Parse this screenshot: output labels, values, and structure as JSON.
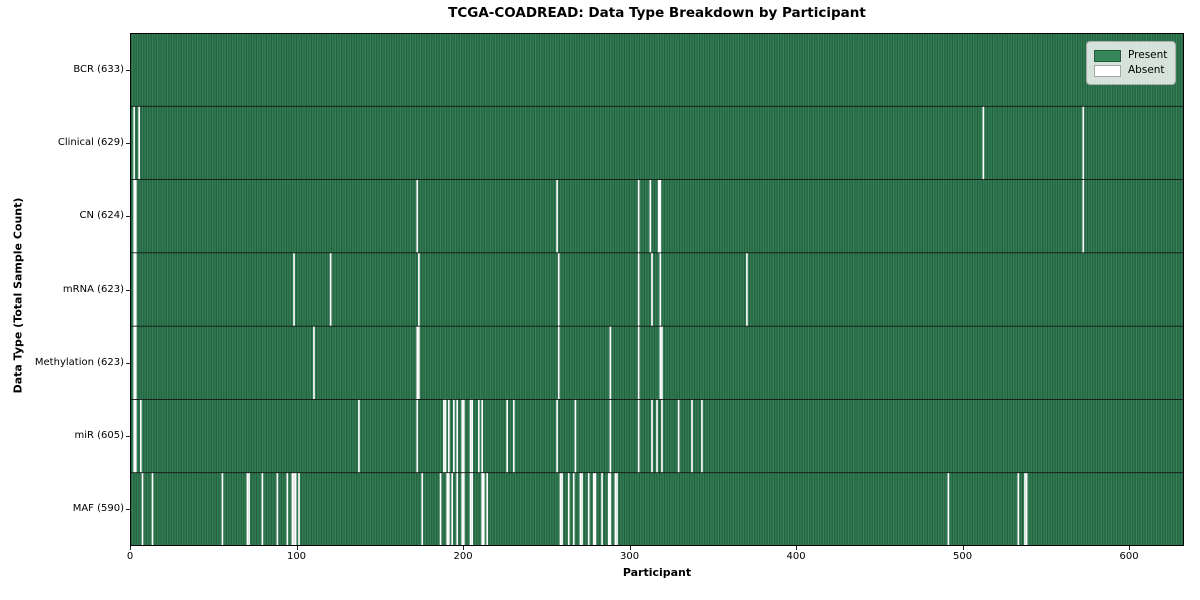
{
  "title": "TCGA-COADREAD: Data Type Breakdown by Participant",
  "axes": {
    "xlabel": "Participant",
    "ylabel": "Data Type (Total Sample Count)"
  },
  "legend": {
    "present_label": "Present",
    "absent_label": "Absent"
  },
  "colors": {
    "present_bright": "#36875B",
    "present_dark": "#1E5134",
    "absent": "#FFFFFF",
    "row_separator": "#141414",
    "plot_border": "#000000"
  },
  "chart_data": {
    "type": "heatmap",
    "title": "TCGA-COADREAD: Data Type Breakdown by Participant",
    "xlabel": "Participant",
    "ylabel": "Data Type (Total Sample Count)",
    "n_participants": 633,
    "xlim": [
      0,
      633
    ],
    "x_ticks": [
      0,
      100,
      200,
      300,
      400,
      500,
      600
    ],
    "legend_entries": [
      {
        "label": "Present",
        "color": "#2E8B57"
      },
      {
        "label": "Absent",
        "color": "#FFFFFF"
      }
    ],
    "legend_position": "upper right",
    "grid": false,
    "rows": [
      {
        "label": "BCR (633)",
        "data_type": "BCR",
        "total_sample_count": 633,
        "absent_participants": []
      },
      {
        "label": "Clinical (629)",
        "data_type": "Clinical",
        "total_sample_count": 629,
        "absent_participants": [
          2,
          5,
          512,
          572
        ]
      },
      {
        "label": "CN (624)",
        "data_type": "CN",
        "total_sample_count": 624,
        "absent_participants": [
          2,
          3,
          172,
          256,
          305,
          312,
          317,
          318,
          572
        ]
      },
      {
        "label": "mRNA (623)",
        "data_type": "mRNA",
        "total_sample_count": 623,
        "absent_participants": [
          2,
          3,
          98,
          120,
          173,
          257,
          305,
          313,
          318,
          370
        ]
      },
      {
        "label": "Methylation (623)",
        "data_type": "Methylation",
        "total_sample_count": 623,
        "absent_participants": [
          2,
          3,
          110,
          172,
          173,
          257,
          288,
          305,
          318,
          319
        ]
      },
      {
        "label": "miR (605)",
        "data_type": "miR",
        "total_sample_count": 605,
        "absent_participants": [
          2,
          3,
          6,
          137,
          172,
          188,
          189,
          191,
          194,
          196,
          199,
          200,
          204,
          205,
          209,
          211,
          226,
          230,
          256,
          267,
          288,
          305,
          313,
          316,
          319,
          329,
          337,
          343
        ]
      },
      {
        "label": "MAF (590)",
        "data_type": "MAF",
        "total_sample_count": 590,
        "absent_participants": [
          7,
          13,
          55,
          70,
          71,
          79,
          88,
          94,
          97,
          98,
          99,
          101,
          175,
          186,
          190,
          191,
          193,
          196,
          199,
          200,
          204,
          205,
          211,
          212,
          214,
          258,
          259,
          263,
          266,
          270,
          271,
          275,
          278,
          279,
          283,
          287,
          288,
          291,
          292,
          491,
          533,
          537,
          538
        ]
      }
    ]
  }
}
